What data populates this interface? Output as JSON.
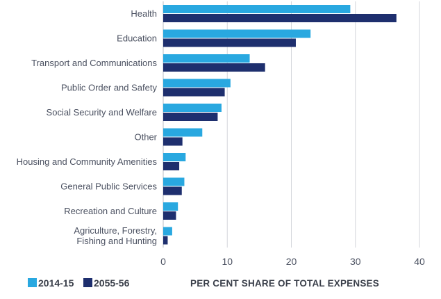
{
  "chart_data": {
    "type": "bar",
    "orientation": "horizontal",
    "categories": [
      [
        "Health"
      ],
      [
        "Education"
      ],
      [
        "Transport and Communications"
      ],
      [
        "Public Order and Safety"
      ],
      [
        "Social Security and Welfare"
      ],
      [
        "Other"
      ],
      [
        "Housing and Community Amenities"
      ],
      [
        "General Public Services"
      ],
      [
        "Recreation and Culture"
      ],
      [
        "Agriculture, Forestry,",
        "Fishing and Hunting"
      ]
    ],
    "series": [
      {
        "name": "2014-15",
        "color": "#29a8e0",
        "values": [
          29.2,
          23.0,
          13.5,
          10.5,
          9.1,
          6.1,
          3.5,
          3.3,
          2.3,
          1.4
        ]
      },
      {
        "name": "2055-56",
        "color": "#1e2f6e",
        "values": [
          36.4,
          20.7,
          15.9,
          9.6,
          8.5,
          3.0,
          2.5,
          2.9,
          2.0,
          0.7
        ]
      }
    ],
    "xlabel": "PER CENT SHARE OF TOTAL EXPENSES",
    "xlim": [
      0,
      40
    ],
    "xticks": [
      0,
      10,
      20,
      30,
      40
    ],
    "grid": "vertical",
    "legend": "bottom-left"
  }
}
